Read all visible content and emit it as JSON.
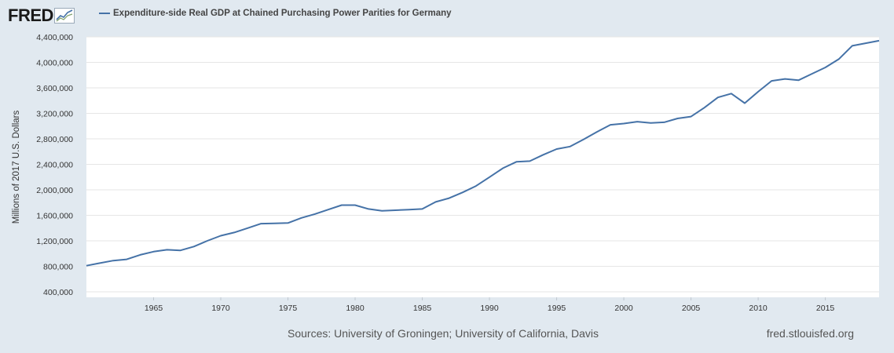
{
  "header": {
    "logo_text": "FRED"
  },
  "footer": {
    "sources": "Sources: University of Groningen; University of California, Davis",
    "site": "fred.stlouisfed.org"
  },
  "colors": {
    "background": "#e1e9f0",
    "plot_background": "#ffffff",
    "series_line": "#4572a7",
    "grid": "#e6e6e6"
  },
  "chart_data": {
    "type": "line",
    "title": "Expenditure-side Real GDP at Chained Purchasing Power Parities for Germany",
    "ylabel": "Millions of 2017 U.S. Dollars",
    "xlabel": "",
    "ylim": [
      400000,
      4400000
    ],
    "xlim": [
      1960,
      2019
    ],
    "y_ticks": [
      400000,
      800000,
      1200000,
      1600000,
      2000000,
      2400000,
      2800000,
      3200000,
      3600000,
      4000000,
      4400000
    ],
    "y_tick_labels": [
      "400,000",
      "800,000",
      "1,200,000",
      "1,600,000",
      "2,000,000",
      "2,400,000",
      "2,800,000",
      "3,200,000",
      "3,600,000",
      "4,000,000",
      "4,400,000"
    ],
    "x_ticks": [
      1965,
      1970,
      1975,
      1980,
      1985,
      1990,
      1995,
      2000,
      2005,
      2010,
      2015
    ],
    "x_tick_labels": [
      "1965",
      "1970",
      "1975",
      "1980",
      "1985",
      "1990",
      "1995",
      "2000",
      "2005",
      "2010",
      "2015"
    ],
    "series": [
      {
        "name": "Expenditure-side Real GDP at Chained Purchasing Power Parities for Germany",
        "x": [
          1960,
          1961,
          1962,
          1963,
          1964,
          1965,
          1966,
          1967,
          1968,
          1969,
          1970,
          1971,
          1972,
          1973,
          1974,
          1975,
          1976,
          1977,
          1978,
          1979,
          1980,
          1981,
          1982,
          1983,
          1984,
          1985,
          1986,
          1987,
          1988,
          1989,
          1990,
          1991,
          1992,
          1993,
          1994,
          1995,
          1996,
          1997,
          1998,
          1999,
          2000,
          2001,
          2002,
          2003,
          2004,
          2005,
          2006,
          2007,
          2008,
          2009,
          2010,
          2011,
          2012,
          2013,
          2014,
          2015,
          2016,
          2017,
          2018,
          2019
        ],
        "y": [
          810000,
          850000,
          890000,
          910000,
          980000,
          1030000,
          1060000,
          1050000,
          1110000,
          1200000,
          1280000,
          1330000,
          1400000,
          1470000,
          1475000,
          1480000,
          1560000,
          1620000,
          1690000,
          1760000,
          1760000,
          1700000,
          1670000,
          1680000,
          1690000,
          1700000,
          1810000,
          1870000,
          1960000,
          2060000,
          2200000,
          2340000,
          2440000,
          2450000,
          2550000,
          2640000,
          2680000,
          2790000,
          2910000,
          3020000,
          3040000,
          3070000,
          3050000,
          3060000,
          3120000,
          3150000,
          3290000,
          3450000,
          3510000,
          3360000,
          3540000,
          3710000,
          3740000,
          3720000,
          3820000,
          3920000,
          4050000,
          4260000,
          4300000,
          4340000
        ]
      }
    ]
  }
}
